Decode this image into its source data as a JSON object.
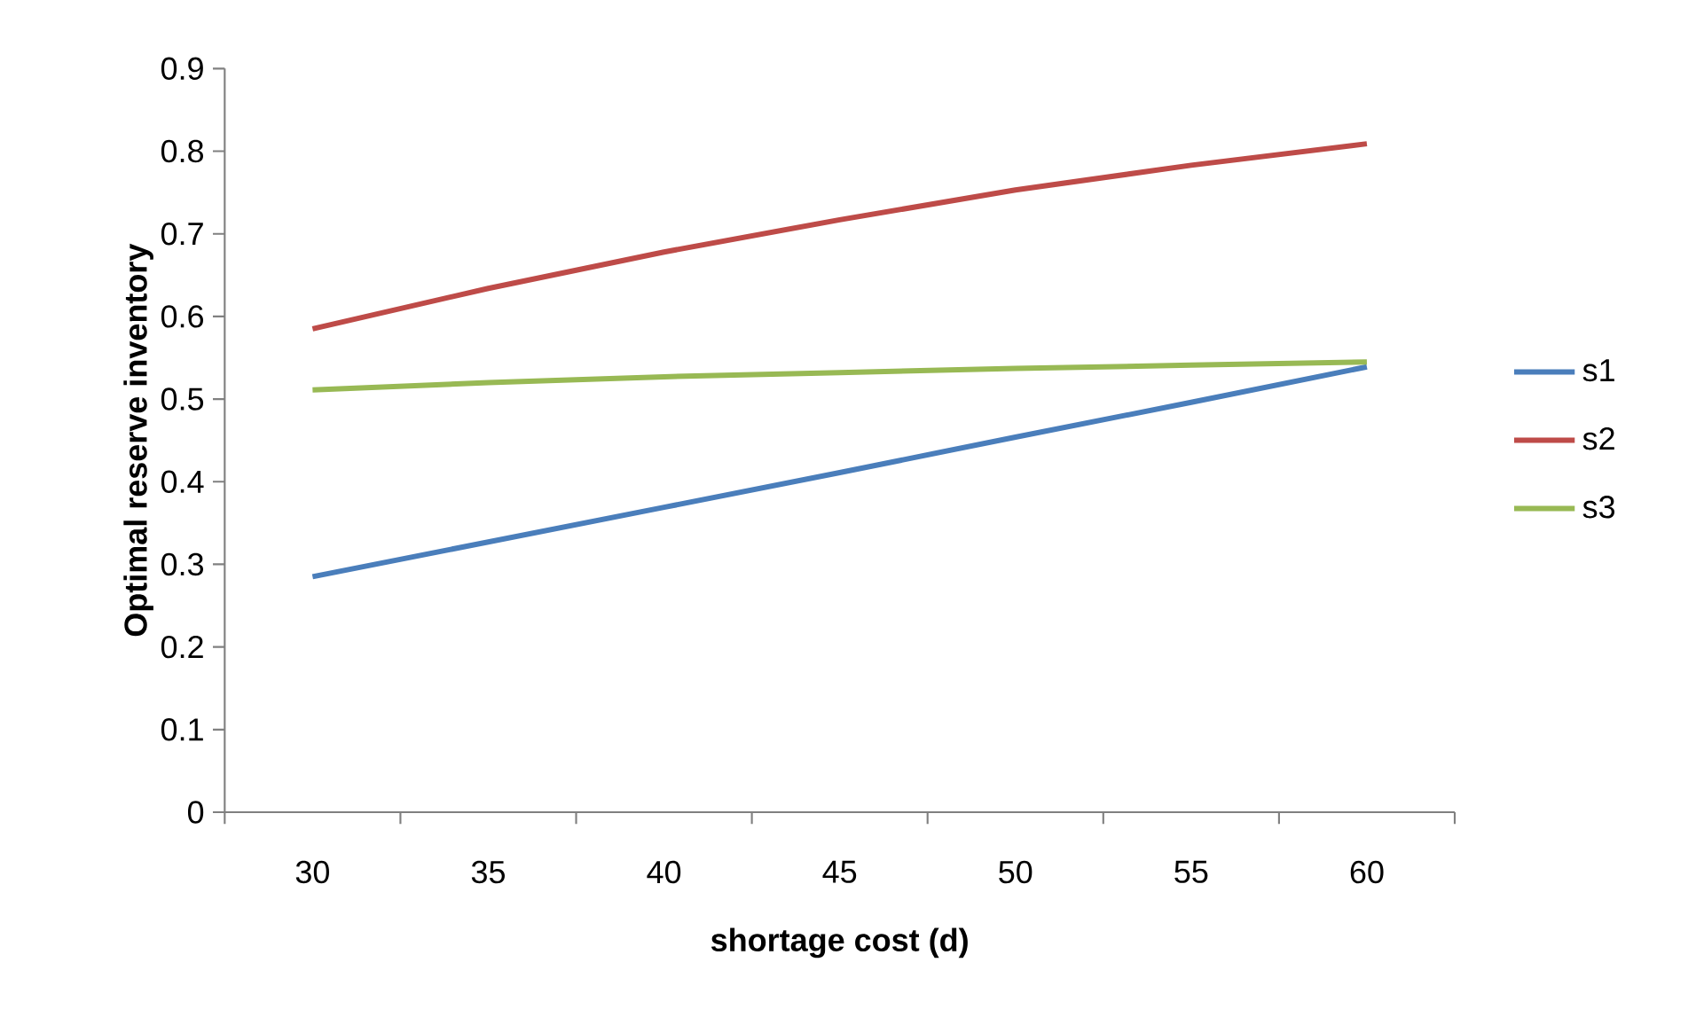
{
  "chart_data": {
    "type": "line",
    "xlabel": "shortage cost (d)",
    "ylabel": "Optimal reserve inventory",
    "categories": [
      "30",
      "35",
      "40",
      "45",
      "50",
      "55",
      "60"
    ],
    "series": [
      {
        "name": "s1",
        "color": "#4a7ebb",
        "values": [
          0.285,
          0.327,
          0.369,
          0.411,
          0.454,
          0.496,
          0.539
        ]
      },
      {
        "name": "s2",
        "color": "#be4b48",
        "values": [
          0.585,
          0.634,
          0.678,
          0.717,
          0.753,
          0.783,
          0.809
        ]
      },
      {
        "name": "s3",
        "color": "#98b954",
        "values": [
          0.511,
          0.52,
          0.527,
          0.532,
          0.537,
          0.541,
          0.545
        ]
      }
    ],
    "ylim": [
      0,
      0.9
    ],
    "yticks": [
      0,
      0.1,
      0.2,
      0.3,
      0.4,
      0.5,
      0.6,
      0.7,
      0.8,
      0.9
    ],
    "grid": false,
    "legend": "right",
    "marker": "none",
    "line_style": "solid"
  }
}
